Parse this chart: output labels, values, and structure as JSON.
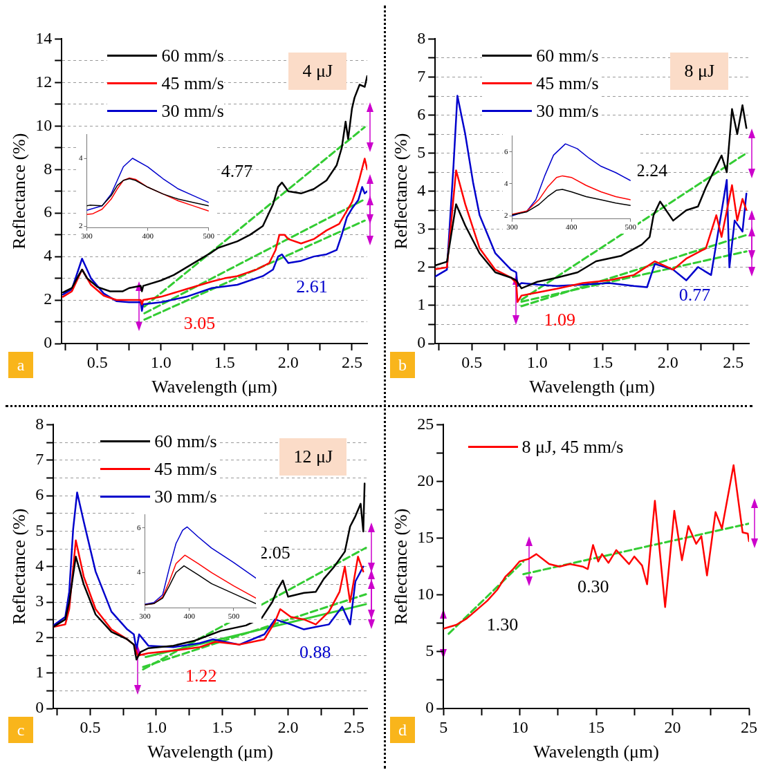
{
  "chart_data": [
    {
      "type": "line",
      "xlabel": "Wavelength (μm)",
      "ylabel": "Reflectance (%)",
      "xlim": [
        0.22,
        2.62
      ],
      "ylim": [
        0,
        14
      ],
      "grid": "y",
      "legend": "top",
      "marker": "none",
      "line_style": "solid",
      "xticks": [
        {
          "value": 0.25,
          "label": null
        },
        0.5,
        {
          "value": 0.75,
          "label": null
        },
        {
          "value": 1,
          "label": "1.0"
        },
        {
          "value": 1.25,
          "label": null
        },
        1.5,
        {
          "value": 1.75,
          "label": null
        },
        {
          "value": 2,
          "label": "2.0"
        },
        {
          "value": 2.25,
          "label": null
        },
        2.5
      ],
      "yticks": [
        0,
        {
          "value": 1,
          "label": null
        },
        2,
        {
          "value": 3,
          "label": null
        },
        4,
        {
          "value": 5,
          "label": null
        },
        6,
        {
          "value": 7,
          "label": null
        },
        8,
        {
          "value": 9,
          "label": null
        },
        10,
        {
          "value": 11,
          "label": null
        },
        12,
        {
          "value": 13,
          "label": null
        },
        14
      ],
      "annotations": [
        "4.77",
        "3.05",
        "2.61",
        "4 μJ",
        "a"
      ],
      "series": [
        {
          "name": "60 mm/s",
          "color": "#000000",
          "x": [
            0.23,
            0.3,
            0.35,
            0.38,
            0.42,
            0.5,
            0.6,
            0.7,
            0.75,
            0.84,
            0.85,
            0.86,
            1.0,
            1.1,
            1.2,
            1.3,
            1.4,
            1.45,
            1.6,
            1.7,
            1.8,
            1.88,
            1.92,
            1.95,
            2.0,
            2.1,
            2.2,
            2.3,
            2.38,
            2.42,
            2.45,
            2.47,
            2.5,
            2.52,
            2.56,
            2.6,
            2.62
          ],
          "values": [
            2.35,
            2.55,
            3.1,
            3.4,
            3.0,
            2.6,
            2.4,
            2.4,
            2.55,
            2.65,
            2.4,
            2.65,
            2.9,
            3.15,
            3.5,
            3.85,
            4.2,
            4.4,
            4.7,
            5.0,
            5.4,
            6.4,
            7.2,
            7.4,
            7.0,
            6.9,
            7.1,
            7.5,
            8.2,
            9.0,
            10.2,
            9.4,
            10.8,
            11.3,
            11.9,
            11.8,
            12.3
          ]
        },
        {
          "name": "45 mm/s",
          "color": "#ff0000",
          "x": [
            0.23,
            0.3,
            0.38,
            0.45,
            0.55,
            0.65,
            0.75,
            0.84,
            0.85,
            0.86,
            1.0,
            1.2,
            1.4,
            1.5,
            1.6,
            1.75,
            1.85,
            1.9,
            1.93,
            1.97,
            2.0,
            2.1,
            2.2,
            2.3,
            2.4,
            2.45,
            2.5,
            2.53,
            2.56,
            2.6,
            2.62
          ],
          "values": [
            2.15,
            2.4,
            3.4,
            2.7,
            2.2,
            2.0,
            2.0,
            2.0,
            1.8,
            2.0,
            2.15,
            2.5,
            2.85,
            3.0,
            3.1,
            3.4,
            3.7,
            4.3,
            5.0,
            5.0,
            4.8,
            4.6,
            4.8,
            5.2,
            5.5,
            6.0,
            6.5,
            7.0,
            7.6,
            8.5,
            8.0
          ]
        },
        {
          "name": "30 mm/s",
          "color": "#0000cc",
          "x": [
            0.23,
            0.3,
            0.38,
            0.45,
            0.55,
            0.65,
            0.75,
            0.84,
            0.85,
            0.86,
            1.0,
            1.2,
            1.4,
            1.6,
            1.8,
            1.88,
            1.92,
            1.95,
            2.0,
            2.1,
            2.2,
            2.3,
            2.38,
            2.42,
            2.46,
            2.5,
            2.55,
            2.58,
            2.6,
            2.62
          ],
          "values": [
            2.25,
            2.5,
            3.9,
            3.0,
            2.3,
            1.95,
            1.9,
            1.9,
            1.5,
            1.8,
            1.9,
            2.15,
            2.55,
            2.7,
            3.1,
            3.4,
            4.0,
            4.1,
            3.7,
            3.8,
            4.0,
            4.1,
            4.3,
            5.0,
            5.8,
            6.2,
            6.6,
            7.2,
            6.9,
            7.0
          ]
        },
        {
          "color": "#33cc33",
          "line_style": "dashed",
          "x": [
            0.87,
            2.6
          ],
          "values": [
            1.7,
            9.95
          ]
        },
        {
          "color": "#33cc33",
          "line_style": "dashed",
          "x": [
            0.87,
            2.6
          ],
          "values": [
            1.39,
            6.63
          ]
        },
        {
          "color": "#33cc33",
          "line_style": "dashed",
          "x": [
            0.87,
            2.6
          ],
          "values": [
            1.1,
            5.65
          ]
        }
      ]
    },
    {
      "type": "line",
      "xlim": [
        300,
        500
      ],
      "ylim": [
        1.95,
        4.7
      ],
      "xticks": [
        300,
        400,
        500
      ],
      "yticks": [
        2,
        4
      ],
      "marker": "none",
      "line_style": "solid",
      "series": [
        {
          "color": "#000000",
          "x": [
            300,
            305,
            325,
            340,
            350,
            360,
            370,
            380,
            400,
            425,
            450,
            475,
            500
          ],
          "values": [
            2.6,
            2.62,
            2.6,
            2.9,
            3.2,
            3.35,
            3.4,
            3.35,
            3.15,
            2.95,
            2.8,
            2.7,
            2.6
          ]
        },
        {
          "color": "#ff0000",
          "x": [
            300,
            310,
            325,
            340,
            350,
            360,
            370,
            380,
            400,
            425,
            450,
            475,
            500
          ],
          "values": [
            2.35,
            2.37,
            2.5,
            2.8,
            3.1,
            3.35,
            3.42,
            3.38,
            3.15,
            2.95,
            2.75,
            2.6,
            2.45
          ]
        },
        {
          "color": "#0000cc",
          "x": [
            300,
            325,
            340,
            350,
            360,
            375,
            400,
            425,
            450,
            475,
            500
          ],
          "values": [
            2.47,
            2.6,
            2.95,
            3.35,
            3.75,
            4.0,
            3.75,
            3.4,
            3.1,
            2.9,
            2.7
          ]
        }
      ]
    },
    {
      "type": "line",
      "xlabel": "Wavelength (μm)",
      "ylabel": "Reflectance (%)",
      "xlim": [
        0.22,
        2.62
      ],
      "ylim": [
        0,
        8
      ],
      "grid": "y",
      "legend": "top",
      "marker": "none",
      "line_style": "solid",
      "xticks": [
        {
          "value": 0.25,
          "label": null
        },
        0.5,
        {
          "value": 0.75,
          "label": null
        },
        {
          "value": 1,
          "label": "1.0"
        },
        {
          "value": 1.25,
          "label": null
        },
        1.5,
        {
          "value": 1.75,
          "label": null
        },
        {
          "value": 2,
          "label": "2.0"
        },
        {
          "value": 2.25,
          "label": null
        },
        2.5
      ],
      "yticks": [
        0,
        {
          "value": 0.5,
          "label": null
        },
        1,
        {
          "value": 1.5,
          "label": null
        },
        2,
        {
          "value": 2.5,
          "label": null
        },
        3,
        {
          "value": 3.5,
          "label": null
        },
        4,
        {
          "value": 4.5,
          "label": null
        },
        5,
        {
          "value": 5.5,
          "label": null
        },
        6,
        {
          "value": 6.5,
          "label": null
        },
        7,
        {
          "value": 7.5,
          "label": null
        },
        8
      ],
      "annotations": [
        "2.24",
        "1.09",
        "0.77",
        "8 μJ",
        "b"
      ],
      "series": [
        {
          "name": "60 mm/s",
          "color": "#000000",
          "x": [
            0.22,
            0.31,
            0.38,
            0.45,
            0.56,
            0.68,
            0.8,
            0.84,
            0.88,
            1.0,
            1.15,
            1.31,
            1.45,
            1.64,
            1.8,
            1.86,
            1.89,
            1.94,
            2.04,
            2.14,
            2.23,
            2.29,
            2.37,
            2.41,
            2.45,
            2.49,
            2.53,
            2.57,
            2.6
          ],
          "values": [
            2.05,
            2.15,
            3.66,
            3.1,
            2.37,
            1.87,
            1.73,
            1.66,
            1.45,
            1.62,
            1.73,
            1.87,
            2.16,
            2.3,
            2.6,
            2.8,
            3.37,
            3.73,
            3.23,
            3.5,
            3.6,
            4.1,
            4.66,
            4.94,
            4.5,
            6.16,
            5.5,
            6.26,
            5.66
          ]
        },
        {
          "name": "45 mm/s",
          "color": "#ff0000",
          "x": [
            0.22,
            0.31,
            0.38,
            0.45,
            0.56,
            0.68,
            0.8,
            0.84,
            0.85,
            0.88,
            1.0,
            1.15,
            1.35,
            1.55,
            1.74,
            1.9,
            2.04,
            2.14,
            2.29,
            2.37,
            2.41,
            2.49,
            2.53,
            2.57,
            2.6
          ],
          "values": [
            1.95,
            2.0,
            4.55,
            3.66,
            2.5,
            1.94,
            1.73,
            1.59,
            1.09,
            1.26,
            1.34,
            1.44,
            1.59,
            1.66,
            1.8,
            2.16,
            1.94,
            2.23,
            2.5,
            3.37,
            2.8,
            4.16,
            3.23,
            3.8,
            3.51
          ]
        },
        {
          "name": "30 mm/s",
          "color": "#0000cc",
          "x": [
            0.22,
            0.31,
            0.36,
            0.39,
            0.45,
            0.51,
            0.56,
            0.68,
            0.8,
            0.84,
            0.85,
            0.88,
            1.0,
            1.15,
            1.35,
            1.55,
            1.74,
            1.84,
            1.9,
            2.04,
            2.14,
            2.23,
            2.33,
            2.45,
            2.47,
            2.51,
            2.57,
            2.6
          ],
          "values": [
            1.76,
            1.94,
            4.66,
            6.51,
            5.5,
            4.23,
            3.37,
            2.37,
            1.94,
            1.87,
            1.51,
            1.59,
            1.55,
            1.51,
            1.55,
            1.59,
            1.51,
            1.48,
            2.09,
            1.94,
            1.66,
            2.01,
            1.8,
            4.3,
            2.0,
            3.23,
            2.94,
            3.94
          ]
        },
        {
          "color": "#33cc33",
          "line_style": "dashed",
          "x": [
            0.88,
            2.6
          ],
          "values": [
            1.15,
            5.0
          ]
        },
        {
          "color": "#33cc33",
          "line_style": "dashed",
          "x": [
            0.88,
            2.6
          ],
          "values": [
            0.98,
            2.85
          ]
        },
        {
          "color": "#33cc33",
          "line_style": "dashed",
          "x": [
            0.88,
            2.6
          ],
          "values": [
            1.1,
            2.42
          ]
        }
      ]
    },
    {
      "type": "line",
      "xlim": [
        300,
        500
      ],
      "ylim": [
        1.8,
        7
      ],
      "xticks": [
        300,
        400,
        500
      ],
      "yticks": [
        2,
        4,
        6
      ],
      "marker": "none",
      "line_style": "solid",
      "series": [
        {
          "color": "#000000",
          "x": [
            300,
            325,
            345,
            360,
            375,
            385,
            400,
            425,
            450,
            475,
            500
          ],
          "values": [
            2.05,
            2.25,
            2.7,
            3.2,
            3.6,
            3.65,
            3.5,
            3.2,
            3.0,
            2.8,
            2.65
          ]
        },
        {
          "color": "#ff0000",
          "x": [
            300,
            325,
            345,
            360,
            375,
            385,
            400,
            425,
            450,
            475,
            500
          ],
          "values": [
            2.1,
            2.3,
            3.0,
            3.8,
            4.4,
            4.5,
            4.4,
            3.9,
            3.5,
            3.2,
            3.0
          ]
        },
        {
          "color": "#0000cc",
          "x": [
            300,
            325,
            340,
            355,
            370,
            390,
            410,
            430,
            450,
            475,
            500
          ],
          "values": [
            2.0,
            2.3,
            3.0,
            4.5,
            5.8,
            6.5,
            6.2,
            5.6,
            5.1,
            4.7,
            4.2
          ]
        }
      ]
    },
    {
      "type": "line",
      "xlabel": "Wavelength (μm)",
      "ylabel": "Reflectance (%)",
      "xlim": [
        0.22,
        2.6
      ],
      "ylim": [
        0,
        8
      ],
      "grid": "y",
      "legend": "top",
      "marker": "none",
      "line_style": "solid",
      "xticks": [
        {
          "value": 0.25,
          "label": null
        },
        0.5,
        {
          "value": 0.75,
          "label": null
        },
        {
          "value": 1,
          "label": "1.0"
        },
        {
          "value": 1.25,
          "label": null
        },
        1.5,
        {
          "value": 1.75,
          "label": null
        },
        {
          "value": 2,
          "label": "2.0"
        },
        {
          "value": 2.25,
          "label": null
        },
        2.5
      ],
      "yticks": [
        0,
        {
          "value": 0.5,
          "label": null
        },
        1,
        {
          "value": 1.5,
          "label": null
        },
        2,
        {
          "value": 2.5,
          "label": null
        },
        3,
        {
          "value": 3.5,
          "label": null
        },
        4,
        {
          "value": 4.5,
          "label": null
        },
        5,
        {
          "value": 5.5,
          "label": null
        },
        6,
        {
          "value": 6.5,
          "label": null
        },
        7,
        {
          "value": 7.5,
          "label": null
        },
        8
      ],
      "annotations": [
        "2.05",
        "1.22",
        "0.88",
        "12 μJ",
        "c"
      ],
      "series": [
        {
          "name": "60 mm/s",
          "color": "#000000",
          "x": [
            0.22,
            0.31,
            0.34,
            0.39,
            0.45,
            0.54,
            0.66,
            0.78,
            0.83,
            0.85,
            0.88,
            0.94,
            1.13,
            1.29,
            1.49,
            1.68,
            1.8,
            1.88,
            1.92,
            1.96,
            2.0,
            2.12,
            2.21,
            2.27,
            2.35,
            2.43,
            2.47,
            2.51,
            2.55,
            2.57,
            2.58
          ],
          "values": [
            2.3,
            2.51,
            3.0,
            4.28,
            3.5,
            2.65,
            2.16,
            1.95,
            1.8,
            1.38,
            1.59,
            1.7,
            1.77,
            1.91,
            2.19,
            2.34,
            2.55,
            3.0,
            3.36,
            3.61,
            3.15,
            3.26,
            3.29,
            3.65,
            4.0,
            4.42,
            5.13,
            5.42,
            5.77,
            4.99,
            6.34
          ]
        },
        {
          "name": "45 mm/s",
          "color": "#ff0000",
          "x": [
            0.22,
            0.31,
            0.34,
            0.39,
            0.45,
            0.54,
            0.66,
            0.78,
            0.83,
            0.86,
            0.94,
            1.13,
            1.33,
            1.45,
            1.63,
            1.82,
            1.9,
            1.94,
            2.02,
            2.12,
            2.21,
            2.31,
            2.39,
            2.43,
            2.47,
            2.53,
            2.57
          ],
          "values": [
            2.3,
            2.37,
            2.8,
            4.74,
            3.72,
            2.8,
            2.23,
            1.95,
            1.8,
            1.49,
            1.56,
            1.63,
            1.73,
            1.88,
            1.8,
            1.95,
            2.44,
            2.8,
            2.58,
            2.51,
            2.37,
            2.73,
            3.29,
            4.0,
            3.0,
            4.28,
            3.86
          ]
        },
        {
          "name": "30 mm/s",
          "color": "#0000cc",
          "x": [
            0.22,
            0.31,
            0.34,
            0.37,
            0.4,
            0.45,
            0.54,
            0.66,
            0.78,
            0.83,
            0.85,
            0.87,
            0.94,
            1.13,
            1.33,
            1.43,
            1.63,
            1.82,
            1.9,
            2.02,
            2.12,
            2.21,
            2.31,
            2.41,
            2.47,
            2.51,
            2.57
          ],
          "values": [
            2.34,
            2.58,
            3.29,
            5.06,
            6.09,
            5.27,
            3.86,
            2.73,
            2.23,
            2.09,
            1.66,
            2.09,
            1.77,
            1.73,
            1.84,
            1.95,
            1.8,
            2.09,
            2.51,
            2.37,
            2.23,
            2.3,
            2.37,
            2.87,
            2.37,
            3.58,
            4.0
          ]
        },
        {
          "color": "#33cc33",
          "line_style": "dashed",
          "x": [
            0.9,
            2.59
          ],
          "values": [
            1.1,
            4.53
          ]
        },
        {
          "color": "#33cc33",
          "line_style": "dashed",
          "x": [
            0.9,
            2.59
          ],
          "values": [
            1.17,
            3.22
          ]
        },
        {
          "color": "#33cc33",
          "line_style": "solid",
          "x": [
            0.92,
            2.59
          ],
          "values": [
            1.45,
            2.94
          ]
        }
      ]
    },
    {
      "type": "line",
      "xlim": [
        300,
        550
      ],
      "ylim": [
        2.4,
        6.6
      ],
      "xticks": [
        300,
        400,
        500
      ],
      "yticks": [
        4,
        6
      ],
      "marker": "none",
      "line_style": "solid",
      "series": [
        {
          "color": "#000000",
          "x": [
            300,
            320,
            340,
            355,
            370,
            388,
            420,
            450,
            500,
            550
          ],
          "values": [
            2.55,
            2.6,
            2.85,
            3.4,
            4.0,
            4.3,
            3.9,
            3.5,
            3.05,
            2.6
          ]
        },
        {
          "color": "#ff0000",
          "x": [
            300,
            320,
            340,
            355,
            370,
            390,
            420,
            450,
            500,
            550
          ],
          "values": [
            2.55,
            2.6,
            2.9,
            3.6,
            4.4,
            4.78,
            4.4,
            4.0,
            3.4,
            2.85
          ]
        },
        {
          "color": "#0000cc",
          "x": [
            300,
            320,
            340,
            355,
            370,
            385,
            395,
            420,
            450,
            500,
            550
          ],
          "values": [
            2.57,
            2.65,
            3.0,
            4.2,
            5.3,
            5.9,
            6.05,
            5.6,
            5.1,
            4.45,
            3.75
          ]
        }
      ]
    },
    {
      "type": "line",
      "xlabel": "Wavelength (μm)",
      "ylabel": "Reflectance (%)",
      "xlim": [
        5,
        25
      ],
      "ylim": [
        0,
        25
      ],
      "legend": "top left",
      "marker": "none",
      "line_style": "solid",
      "xticks": [
        5,
        {
          "value": 7.5,
          "label": null
        },
        10,
        {
          "value": 12.5,
          "label": null
        },
        15,
        {
          "value": 17.5,
          "label": null
        },
        20,
        {
          "value": 22.5,
          "label": null
        },
        25
      ],
      "yticks": [
        0,
        {
          "value": 2.5,
          "label": null
        },
        5,
        {
          "value": 7.5,
          "label": null
        },
        10,
        {
          "value": 12.5,
          "label": null
        },
        15,
        {
          "value": 17.5,
          "label": null
        },
        20,
        {
          "value": 22.5,
          "label": null
        },
        25
      ],
      "annotations": [
        "1.30",
        "0.30",
        "d"
      ],
      "series": [
        {
          "name": "8 μJ, 45 mm/s",
          "color": "#ff0000",
          "x": [
            5,
            5.84,
            6.52,
            7.19,
            7.87,
            8.54,
            9.05,
            9.56,
            9.98,
            10.57,
            11.08,
            11.92,
            12.6,
            13.27,
            14.11,
            14.45,
            14.79,
            15.13,
            15.38,
            15.8,
            16.31,
            17.15,
            17.49,
            18.0,
            18.33,
            18.84,
            19.51,
            20.11,
            20.61,
            21.03,
            21.54,
            21.88,
            22.25,
            22.81,
            23.23,
            23.99,
            24.58,
            24.92,
            25
          ],
          "values": [
            7.03,
            7.37,
            7.92,
            8.7,
            9.49,
            10.49,
            11.6,
            12.28,
            12.95,
            13.17,
            13.6,
            12.72,
            12.5,
            12.72,
            12.5,
            12.28,
            14.4,
            12.95,
            13.6,
            12.83,
            13.95,
            12.72,
            13.39,
            12.6,
            10.94,
            18.3,
            8.93,
            17.41,
            13.06,
            16.07,
            14.5,
            15.18,
            11.72,
            17.3,
            15.85,
            21.43,
            15.51,
            15.4,
            14.73
          ]
        },
        {
          "color": "#33cc33",
          "line_style": "dashed",
          "x": [
            5.34,
            10.23
          ],
          "values": [
            6.58,
            12.95
          ]
        },
        {
          "color": "#33cc33",
          "line_style": "dashed",
          "x": [
            10.23,
            25
          ],
          "values": [
            11.83,
            16.29
          ]
        }
      ]
    }
  ]
}
